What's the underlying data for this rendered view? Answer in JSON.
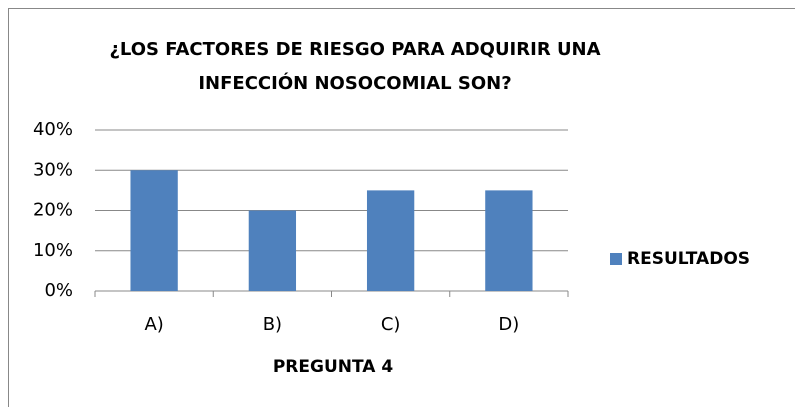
{
  "chart_data": {
    "type": "bar",
    "title": [
      "¿LOS FACTORES DE RIESGO PARA ADQUIRIR UNA",
      "INFECCIÓN NOSOCOMIAL SON?"
    ],
    "x_label": "PREGUNTA 4",
    "categories": [
      "A)",
      "B)",
      "C)",
      "D)"
    ],
    "series": [
      {
        "name": "RESULTADOS",
        "color": "#4f81bd",
        "values": [
          30,
          20,
          25,
          25
        ]
      }
    ],
    "ylim": [
      0,
      40
    ],
    "yticks": [
      {
        "value": 0,
        "label": "0%"
      },
      {
        "value": 10,
        "label": "10%"
      },
      {
        "value": 20,
        "label": "20%"
      },
      {
        "value": 30,
        "label": "30%"
      },
      {
        "value": 40,
        "label": "40%"
      }
    ],
    "grid": true,
    "legend": "right"
  }
}
